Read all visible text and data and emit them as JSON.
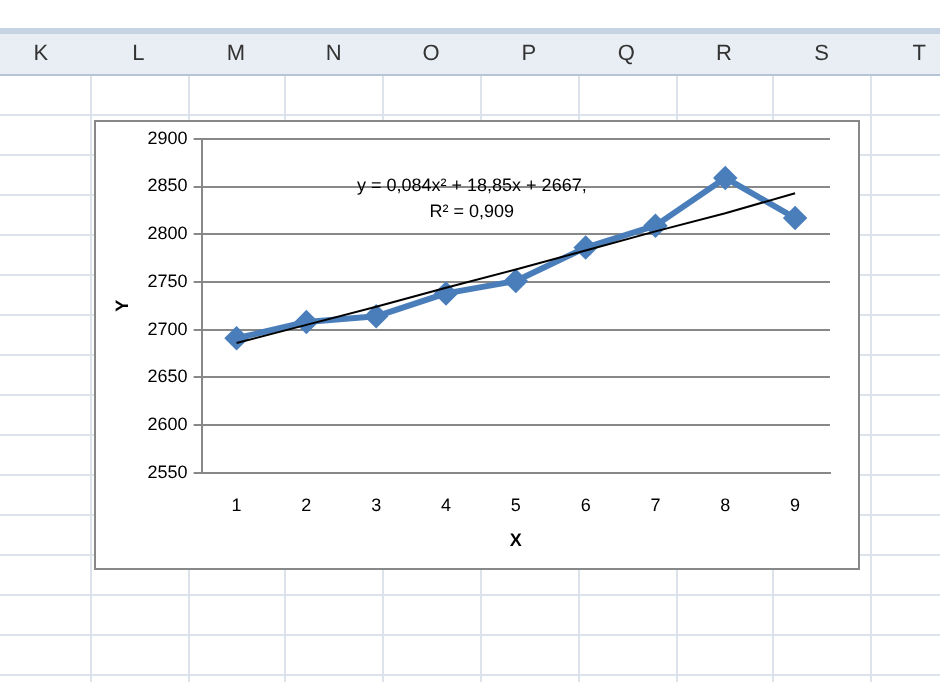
{
  "chart_data": {
    "type": "line",
    "xlabel": "X",
    "ylabel": "Y",
    "categories": [
      "1",
      "2",
      "3",
      "4",
      "5",
      "6",
      "7",
      "8",
      "9"
    ],
    "series": [
      {
        "color": "#4a7ebb",
        "values": [
          2691,
          2708,
          2714,
          2738,
          2751,
          2786,
          2809,
          2859,
          2817
        ],
        "marker": "diamond"
      },
      {
        "type": "line",
        "color": "#000000",
        "values": [
          2686,
          2705,
          2724,
          2744,
          2763,
          2783,
          2803,
          2822,
          2843
        ],
        "marker": "none"
      }
    ],
    "ylim": [
      2550,
      2900
    ],
    "yticks": [
      2550,
      2600,
      2650,
      2700,
      2750,
      2800,
      2850,
      2900
    ],
    "grid": "y",
    "legend": false,
    "annotations": [
      "y = 0,084x² + 18,85x + 2667,",
      "R² = 0,909",
      "K",
      "L",
      "M",
      "N",
      "O",
      "P",
      "Q",
      "R",
      "S",
      "T"
    ]
  }
}
